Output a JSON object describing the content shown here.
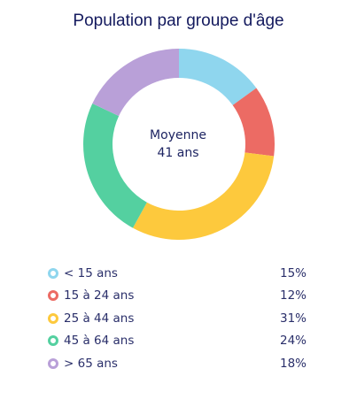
{
  "chart_data": {
    "type": "pie",
    "title": "Population par groupe d'âge",
    "center_label": {
      "line1": "Moyenne",
      "line2": "41 ans"
    },
    "slices": [
      {
        "label": "< 15 ans",
        "value": 15,
        "display": "15%",
        "color": "#8fd6ee"
      },
      {
        "label": "15 à 24 ans",
        "value": 12,
        "display": "12%",
        "color": "#ec6b64"
      },
      {
        "label": "25 à 44 ans",
        "value": 31,
        "display": "31%",
        "color": "#fdc93d"
      },
      {
        "label": "45 à 64 ans",
        "value": 24,
        "display": "24%",
        "color": "#54d0a0"
      },
      {
        "label": "> 65 ans",
        "value": 18,
        "display": "18%",
        "color": "#b9a0d8"
      }
    ]
  }
}
